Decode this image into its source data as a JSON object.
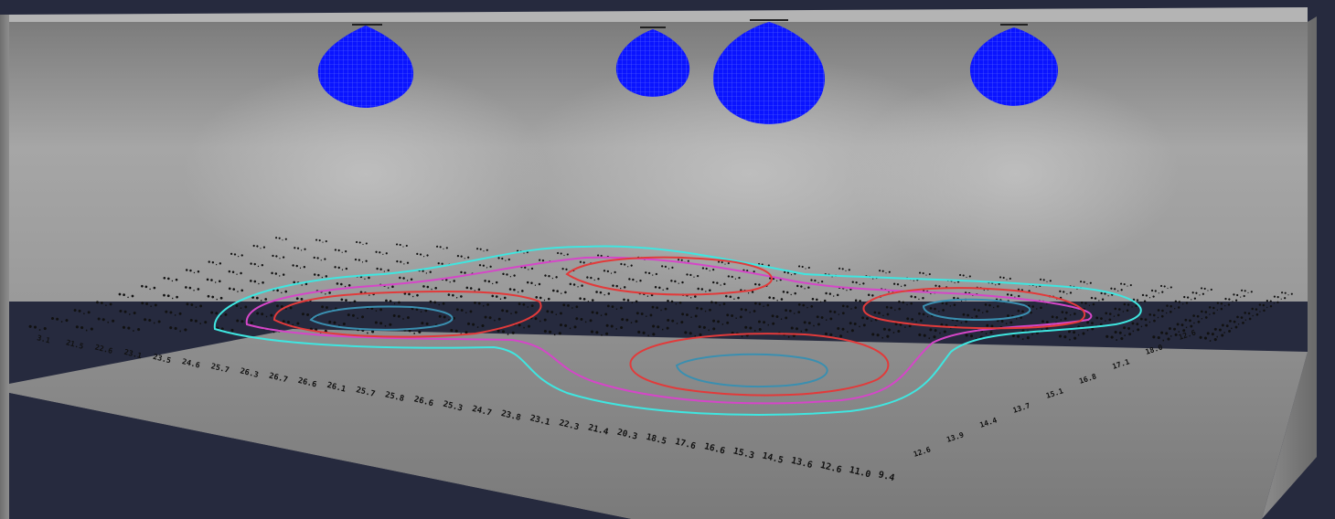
{
  "scene": {
    "type": "lighting-simulation-3d-view",
    "colors": {
      "background": "#262a3e",
      "luminaire": "#0a14ff",
      "luminaire_wire": "#6a78ff",
      "contour_cyan": "#3fe6e0",
      "contour_magenta": "#d546c8",
      "contour_red": "#e23a3a",
      "contour_teal": "#3a8fb0",
      "wall": "#9a9a9a",
      "floor": "#8a8a8a"
    },
    "luminaires": [
      {
        "name": "luminaire-1"
      },
      {
        "name": "luminaire-2"
      },
      {
        "name": "luminaire-3"
      },
      {
        "name": "luminaire-4"
      }
    ],
    "contours": [
      {
        "name": "contour-outer",
        "color": "#3fe6e0"
      },
      {
        "name": "contour-mid",
        "color": "#d546c8"
      },
      {
        "name": "contour-inner",
        "color": "#e23a3a"
      },
      {
        "name": "contour-core",
        "color": "#3a8fb0"
      }
    ],
    "front_row_values": [
      "3.1",
      "21.5",
      "22.6",
      "23.1",
      "23.5",
      "24.6",
      "25.7",
      "26.3",
      "26.7",
      "26.6",
      "26.1",
      "25.7",
      "25.8",
      "26.6",
      "25.3",
      "24.7",
      "23.8",
      "23.1",
      "22.3",
      "21.4",
      "20.3",
      "18.5",
      "17.6",
      "16.6",
      "15.3",
      "14.5",
      "13.6",
      "12.6",
      "11.0",
      "9.4"
    ],
    "right_row_values": [
      "12.6",
      "13.9",
      "14.4",
      "13.7",
      "15.1",
      "16.8",
      "17.1",
      "18.0",
      "12.6"
    ]
  }
}
